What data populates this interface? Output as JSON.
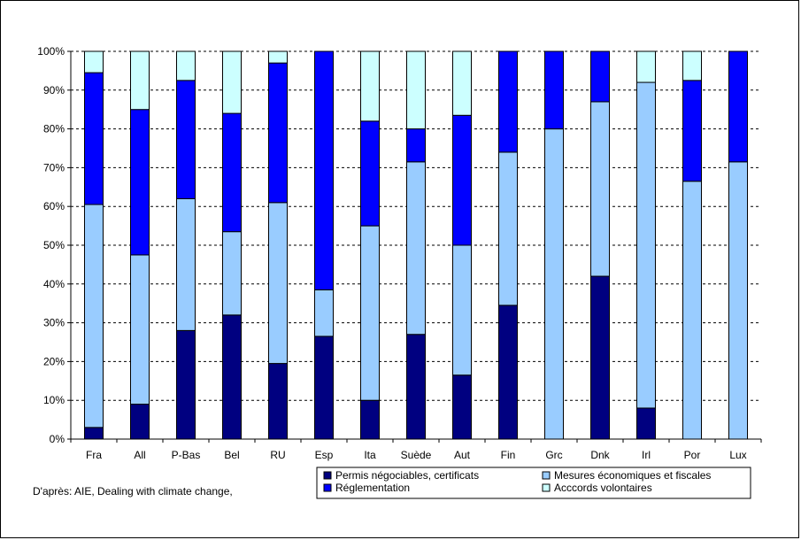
{
  "source_note": "D'après:  AIE, Dealing with climate change,",
  "colors": {
    "permis": "#000080",
    "mesures": "#99ccff",
    "reglementation": "#0000ff",
    "accords": "#ccffff",
    "stroke": "#000000"
  },
  "chart_data": {
    "type": "bar",
    "stacked": true,
    "percent": true,
    "categories": [
      "Fra",
      "All",
      "P-Bas",
      "Bel",
      "RU",
      "Esp",
      "Ita",
      "Suède",
      "Aut",
      "Fin",
      "Grc",
      "Dnk",
      "Irl",
      "Por",
      "Lux"
    ],
    "series": [
      {
        "name": "Permis négociables, certificats",
        "color": "#000080",
        "values": [
          3,
          9,
          28,
          32,
          19.5,
          26.5,
          10,
          27,
          16.5,
          34.5,
          0,
          42,
          8,
          0,
          0
        ]
      },
      {
        "name": "Mesures économiques et fiscales",
        "color": "#99ccff",
        "values": [
          57.5,
          38.5,
          34,
          21.5,
          41.5,
          12,
          45,
          44.5,
          33.5,
          39.5,
          80,
          45,
          84,
          66.5,
          71.5
        ]
      },
      {
        "name": "Réglementation",
        "color": "#0000ff",
        "values": [
          34,
          37.5,
          30.5,
          30.5,
          36,
          61.5,
          27,
          8.5,
          33.5,
          26,
          20,
          13,
          0,
          26,
          28.5
        ]
      },
      {
        "name": "Acccords volontaires",
        "color": "#ccffff",
        "values": [
          5.5,
          15,
          7.5,
          16,
          3,
          0,
          18,
          20,
          16.5,
          0,
          0,
          0,
          8,
          7.5,
          0
        ]
      }
    ],
    "y_ticks": [
      "0%",
      "10%",
      "20%",
      "30%",
      "40%",
      "50%",
      "60%",
      "70%",
      "80%",
      "90%",
      "100%"
    ],
    "ylim": [
      0,
      100
    ],
    "grid": true,
    "legend_position": "bottom-right",
    "legend_rows": [
      [
        "Permis négociables, certificats",
        "Mesures économiques et fiscales"
      ],
      [
        "Réglementation",
        "Acccords volontaires"
      ]
    ]
  }
}
